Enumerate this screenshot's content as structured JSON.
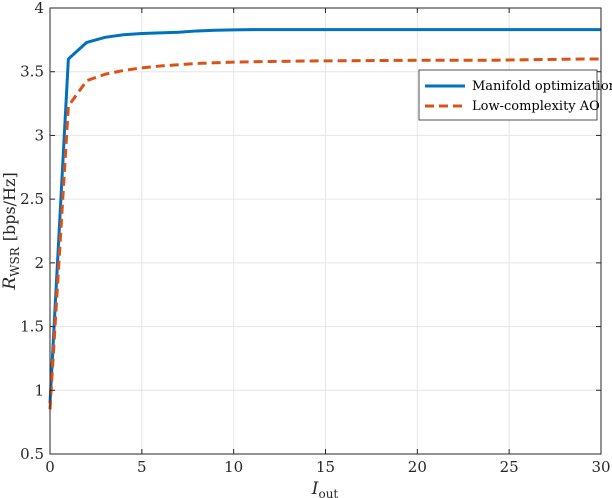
{
  "chart_data": {
    "type": "line",
    "title": "",
    "xlabel": {
      "main": "I",
      "sub": "out"
    },
    "ylabel": {
      "main": "R",
      "sub": "WSR",
      "unit": "[bps/Hz]"
    },
    "xlim": [
      0,
      30
    ],
    "ylim": [
      0.5,
      4
    ],
    "xticks": [
      0,
      5,
      10,
      15,
      20,
      25,
      30
    ],
    "yticks": [
      0.5,
      1,
      1.5,
      2,
      2.5,
      3,
      3.5,
      4
    ],
    "ytick_labels": [
      "0.5",
      "1",
      "1.5",
      "2",
      "2.5",
      "3",
      "3.5",
      "4"
    ],
    "grid": true,
    "legend_position": "top-right",
    "series": [
      {
        "name": "Manifold optimization",
        "color": "#0072BD",
        "style": "solid",
        "x": [
          0,
          1,
          2,
          3,
          4,
          5,
          6,
          7,
          8,
          9,
          10,
          11,
          12,
          13,
          14,
          15,
          16,
          17,
          18,
          19,
          20,
          21,
          22,
          23,
          24,
          25,
          26,
          27,
          28,
          29,
          30
        ],
        "y": [
          0.9,
          3.6,
          3.73,
          3.77,
          3.79,
          3.8,
          3.805,
          3.81,
          3.82,
          3.825,
          3.828,
          3.83,
          3.83,
          3.83,
          3.83,
          3.83,
          3.83,
          3.83,
          3.83,
          3.83,
          3.83,
          3.83,
          3.83,
          3.83,
          3.83,
          3.83,
          3.83,
          3.83,
          3.83,
          3.83,
          3.83
        ]
      },
      {
        "name": "Low-complexity AO",
        "color": "#D95319",
        "style": "dashed",
        "x": [
          0,
          1,
          2,
          3,
          4,
          5,
          6,
          7,
          8,
          9,
          10,
          11,
          12,
          13,
          14,
          15,
          16,
          17,
          18,
          19,
          20,
          21,
          22,
          23,
          24,
          25,
          26,
          27,
          28,
          29,
          30
        ],
        "y": [
          0.85,
          3.23,
          3.43,
          3.48,
          3.51,
          3.53,
          3.545,
          3.555,
          3.565,
          3.57,
          3.575,
          3.578,
          3.58,
          3.582,
          3.584,
          3.585,
          3.586,
          3.587,
          3.588,
          3.589,
          3.59,
          3.59,
          3.59,
          3.59,
          3.59,
          3.592,
          3.594,
          3.596,
          3.598,
          3.6,
          3.6
        ]
      }
    ]
  }
}
